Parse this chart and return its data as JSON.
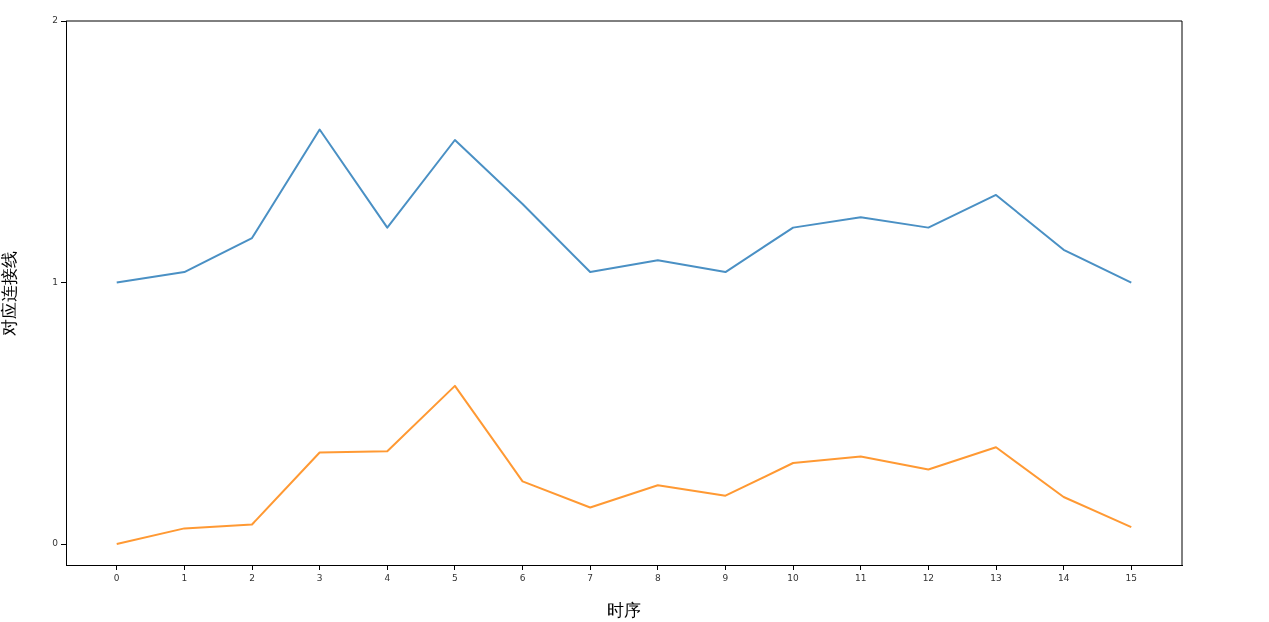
{
  "chart_data": {
    "type": "line",
    "xlabel": "时序",
    "ylabel": "对应连接线",
    "x": [
      0,
      1,
      2,
      3,
      4,
      5,
      6,
      7,
      8,
      9,
      10,
      11,
      12,
      13,
      14,
      15
    ],
    "series": [
      {
        "color": "#4a90c4",
        "values": [
          1.0,
          1.04,
          1.17,
          1.585,
          1.21,
          1.545,
          1.3,
          1.04,
          1.085,
          1.04,
          1.21,
          1.25,
          1.21,
          1.335,
          1.125,
          1.0
        ]
      },
      {
        "color": "#ff9933",
        "values": [
          0,
          0.06,
          0.075,
          0.35,
          0.355,
          0.605,
          0.24,
          0.14,
          0.225,
          0.185,
          0.31,
          0.335,
          0.285,
          0.37,
          0.18,
          0.065
        ]
      }
    ],
    "xlim": [
      -0.75,
      15.75
    ],
    "xticks": [
      0,
      1,
      2,
      3,
      4,
      5,
      6,
      7,
      8,
      9,
      10,
      11,
      12,
      13,
      14,
      15
    ],
    "ylim": [
      -0.08,
      2
    ],
    "yticks": [
      0,
      1,
      2
    ],
    "grid": false,
    "legend": false,
    "marker": "none",
    "line_style": "solid"
  }
}
